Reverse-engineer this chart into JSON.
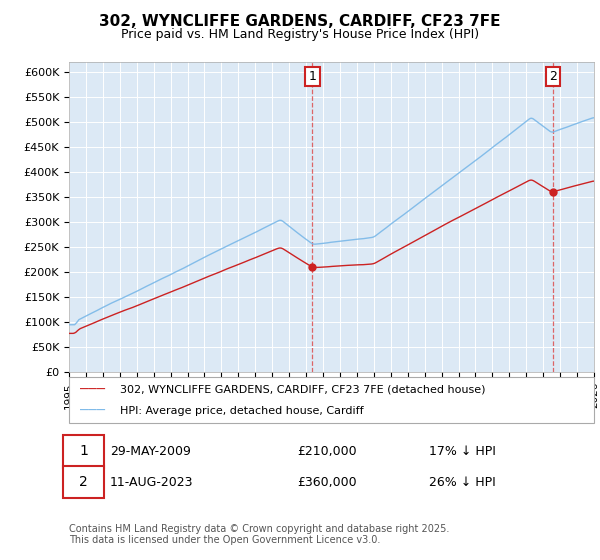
{
  "title": "302, WYNCLIFFE GARDENS, CARDIFF, CF23 7FE",
  "subtitle": "Price paid vs. HM Land Registry's House Price Index (HPI)",
  "ylabel_ticks": [
    "£0",
    "£50K",
    "£100K",
    "£150K",
    "£200K",
    "£250K",
    "£300K",
    "£350K",
    "£400K",
    "£450K",
    "£500K",
    "£550K",
    "£600K"
  ],
  "ytick_vals": [
    0,
    50000,
    100000,
    150000,
    200000,
    250000,
    300000,
    350000,
    400000,
    450000,
    500000,
    550000,
    600000
  ],
  "ylim": [
    0,
    620000
  ],
  "hpi_color": "#7ab8e8",
  "property_color": "#cc2222",
  "plot_bg": "#dce9f5",
  "purchase1_year": 2009.375,
  "purchase1_price": 210000,
  "purchase1_date": "29-MAY-2009",
  "purchase1_label": "17% ↓ HPI",
  "purchase2_year": 2023.583,
  "purchase2_price": 360000,
  "purchase2_date": "11-AUG-2023",
  "purchase2_label": "26% ↓ HPI",
  "legend1": "302, WYNCLIFFE GARDENS, CARDIFF, CF23 7FE (detached house)",
  "legend2": "HPI: Average price, detached house, Cardiff",
  "footer": "Contains HM Land Registry data © Crown copyright and database right 2025.\nThis data is licensed under the Open Government Licence v3.0.",
  "x_start_year": 1995,
  "x_end_year": 2026
}
